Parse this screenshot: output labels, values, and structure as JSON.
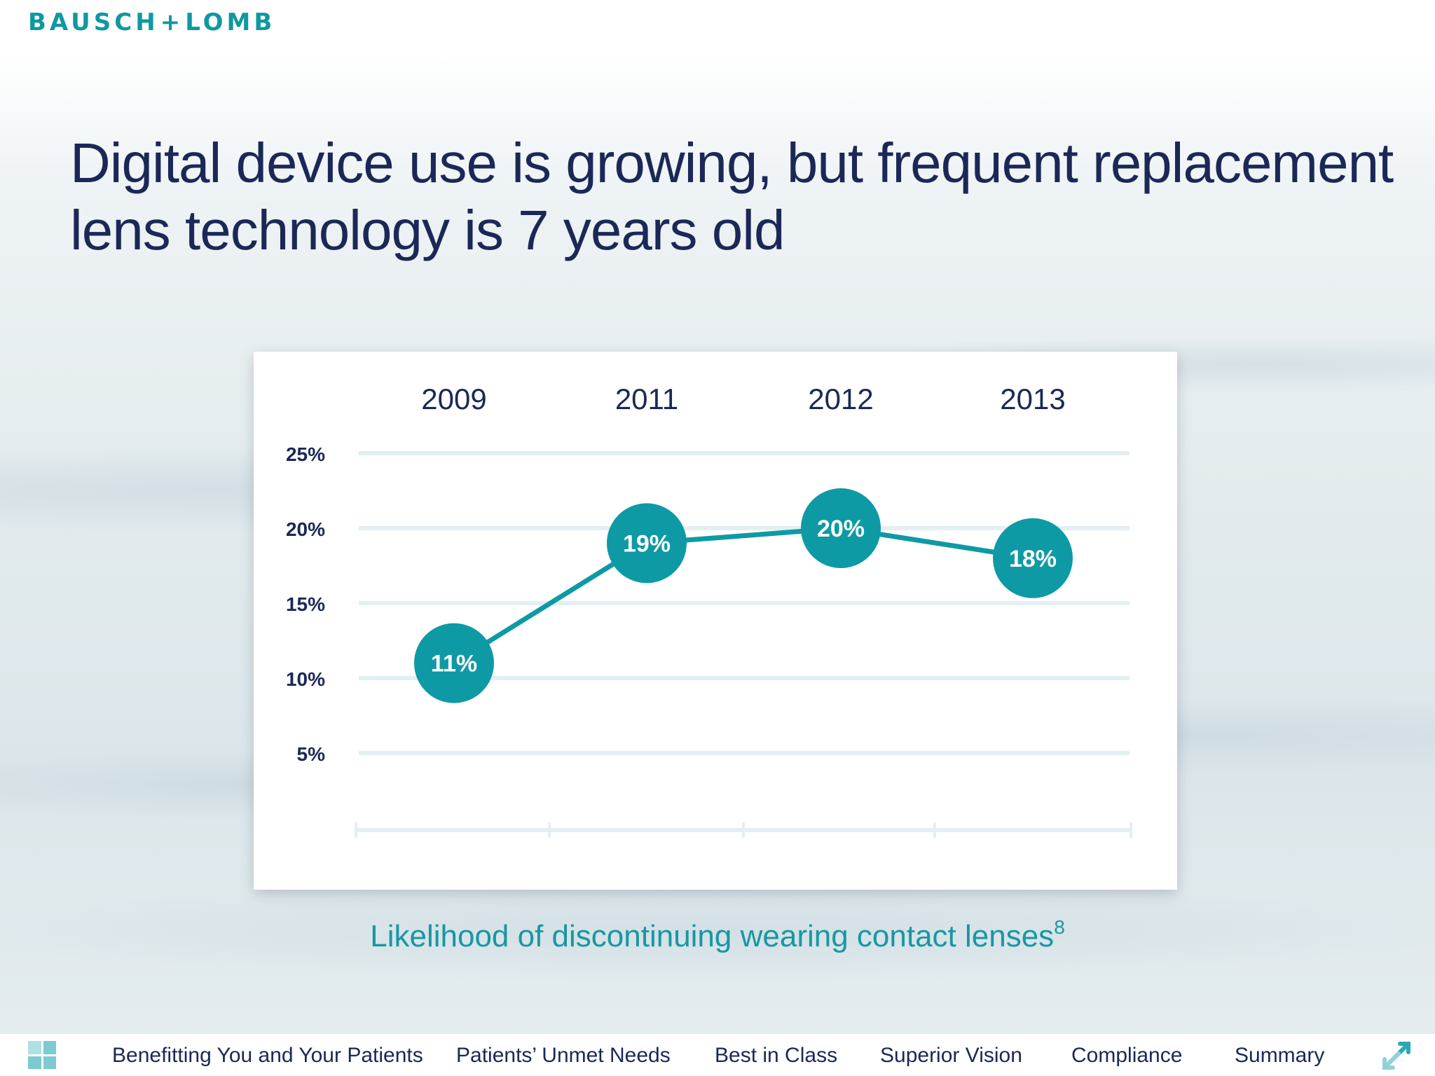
{
  "brand": {
    "logo_left": "BAUSCH",
    "logo_plus": "+",
    "logo_right": "LOMB",
    "accent_color": "#0f98a3"
  },
  "headline": {
    "line1": "Digital device use is growing, but frequent replacement",
    "line2": "lens technology is 7 years old"
  },
  "chart_data": {
    "type": "line",
    "categories": [
      "2009",
      "2011",
      "2012",
      "2013"
    ],
    "values": [
      11,
      19,
      20,
      18
    ],
    "data_labels": [
      "11%",
      "19%",
      "20%",
      "18%"
    ],
    "y_ticks": [
      {
        "value": 25,
        "label": "25%"
      },
      {
        "value": 20,
        "label": "20%"
      },
      {
        "value": 15,
        "label": "15%"
      },
      {
        "value": 10,
        "label": "10%"
      },
      {
        "value": 5,
        "label": "5%"
      }
    ],
    "ylim": [
      0,
      25
    ],
    "grid": true,
    "color": "#0e9aa5",
    "grid_color": "#e3eff2"
  },
  "caption": {
    "text": "Likelihood of discontinuing wearing contact lenses",
    "superscript": "8"
  },
  "nav": {
    "menu_icon": "grid-icon",
    "items": [
      "Benefitting You and Your Patients",
      "Patients’ Unmet Needs",
      "Best in Class",
      "Superior Vision",
      "Compliance",
      "Summary"
    ],
    "fullscreen_icon": "expand-arrows-icon"
  }
}
